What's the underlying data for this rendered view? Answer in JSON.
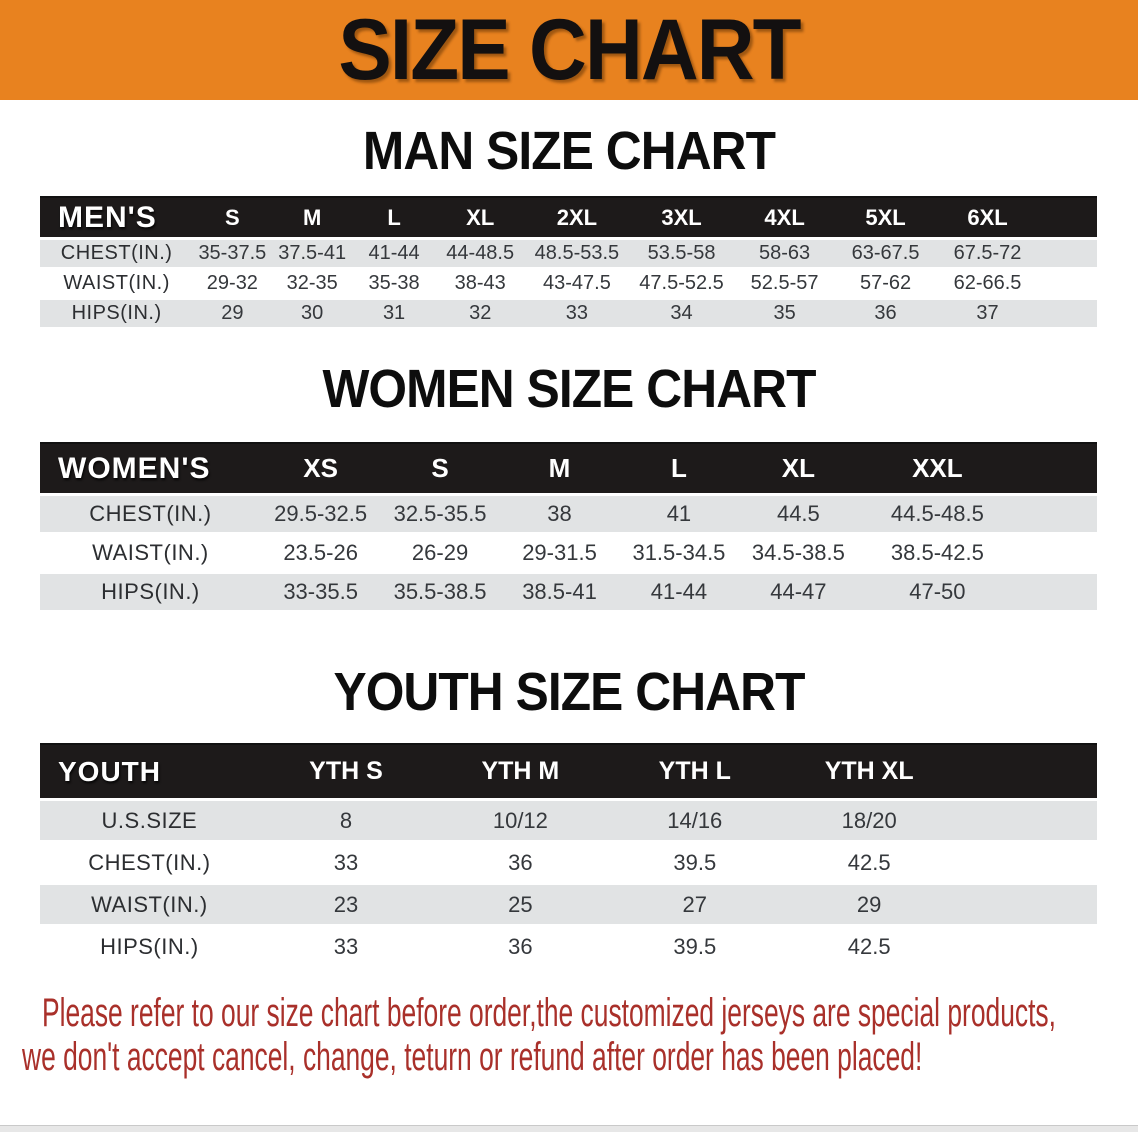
{
  "banner": {
    "title": "SIZE CHART"
  },
  "sections": [
    {
      "heading": "MAN SIZE CHART",
      "table": {
        "label": "MEN'S",
        "columns": [
          "S",
          "M",
          "L",
          "XL",
          "2XL",
          "3XL",
          "4XL",
          "5XL",
          "6XL"
        ],
        "rows": [
          {
            "label": "CHEST(IN.)",
            "values": [
              "35-37.5",
              "37.5-41",
              "41-44",
              "44-48.5",
              "48.5-53.5",
              "53.5-58",
              "58-63",
              "63-67.5",
              "67.5-72"
            ]
          },
          {
            "label": "WAIST(IN.)",
            "values": [
              "29-32",
              "32-35",
              "35-38",
              "38-43",
              "43-47.5",
              "47.5-52.5",
              "52.5-57",
              "57-62",
              "62-66.5"
            ]
          },
          {
            "label": "HIPS(IN.)",
            "values": [
              "29",
              "30",
              "31",
              "32",
              "33",
              "34",
              "35",
              "36",
              "37"
            ]
          }
        ]
      }
    },
    {
      "heading": "WOMEN SIZE CHART",
      "table": {
        "label": "WOMEN'S",
        "columns": [
          "XS",
          "S",
          "M",
          "L",
          "XL",
          "XXL"
        ],
        "rows": [
          {
            "label": "CHEST(IN.)",
            "values": [
              "29.5-32.5",
              "32.5-35.5",
              "38",
              "41",
              "44.5",
              "44.5-48.5"
            ]
          },
          {
            "label": "WAIST(IN.)",
            "values": [
              "23.5-26",
              "26-29",
              "29-31.5",
              "31.5-34.5",
              "34.5-38.5",
              "38.5-42.5"
            ]
          },
          {
            "label": "HIPS(IN.)",
            "values": [
              "33-35.5",
              "35.5-38.5",
              "38.5-41",
              "41-44",
              "44-47",
              "47-50"
            ]
          }
        ]
      }
    },
    {
      "heading": "YOUTH SIZE CHART",
      "table": {
        "label": "YOUTH",
        "columns": [
          "YTH S",
          "YTH M",
          "YTH L",
          "YTH XL"
        ],
        "rows": [
          {
            "label": "U.S.SIZE",
            "values": [
              "8",
              "10/12",
              "14/16",
              "18/20"
            ]
          },
          {
            "label": "CHEST(IN.)",
            "values": [
              "33",
              "36",
              "39.5",
              "42.5"
            ]
          },
          {
            "label": "WAIST(IN.)",
            "values": [
              "23",
              "25",
              "27",
              "29"
            ]
          },
          {
            "label": "HIPS(IN.)",
            "values": [
              "33",
              "36",
              "39.5",
              "42.5"
            ]
          }
        ]
      }
    }
  ],
  "footer": {
    "line1": "Please refer to our size chart before order,the customized jerseys are special products,",
    "line2": "we don't accept cancel, change, teturn or refund after order has been placed!"
  },
  "colors": {
    "banner_bg": "#E8821F",
    "header_band": "#1D1A1A",
    "stripe_gray": "#E1E3E4",
    "notice_red": "#A9302A"
  }
}
